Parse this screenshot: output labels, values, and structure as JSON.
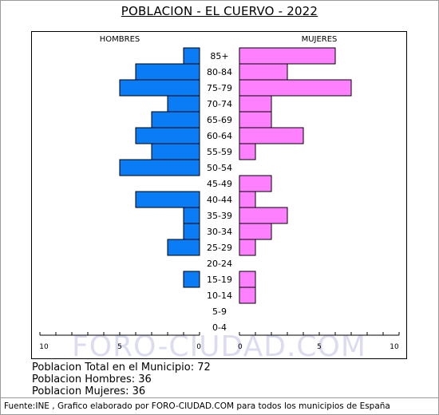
{
  "chart_data": {
    "type": "bar",
    "title": "POBLACION - EL CUERVO - 2022",
    "left_label": "HOMBRES",
    "right_label": "MUJERES",
    "categories": [
      "85+",
      "80-84",
      "75-79",
      "70-74",
      "65-69",
      "60-64",
      "55-59",
      "50-54",
      "45-49",
      "40-44",
      "35-39",
      "30-34",
      "25-29",
      "20-24",
      "15-19",
      "10-14",
      "5-9",
      "0-4"
    ],
    "series": [
      {
        "name": "HOMBRES",
        "values": [
          1,
          4,
          5,
          2,
          3,
          4,
          3,
          5,
          0,
          4,
          1,
          1,
          2,
          0,
          1,
          0,
          0,
          0
        ],
        "color": "#0a7cf5"
      },
      {
        "name": "MUJERES",
        "values": [
          6,
          3,
          7,
          2,
          2,
          4,
          1,
          0,
          2,
          1,
          3,
          2,
          1,
          0,
          1,
          1,
          0,
          0
        ],
        "color": "#ff80ff"
      }
    ],
    "xlim": [
      0,
      10
    ],
    "x_ticks": [
      "10",
      "5",
      "0",
      "0",
      "5",
      "10"
    ],
    "watermark": "FORO-CIUDAD.COM"
  },
  "summary": {
    "total": "Poblacion Total en el Municipio: 72",
    "men": "Poblacion Hombres: 36",
    "women": "Poblacion Mujeres: 36"
  },
  "footer": "Fuente:INE , Grafico elaborado por FORO-CIUDAD.COM para todos los municipios de España"
}
